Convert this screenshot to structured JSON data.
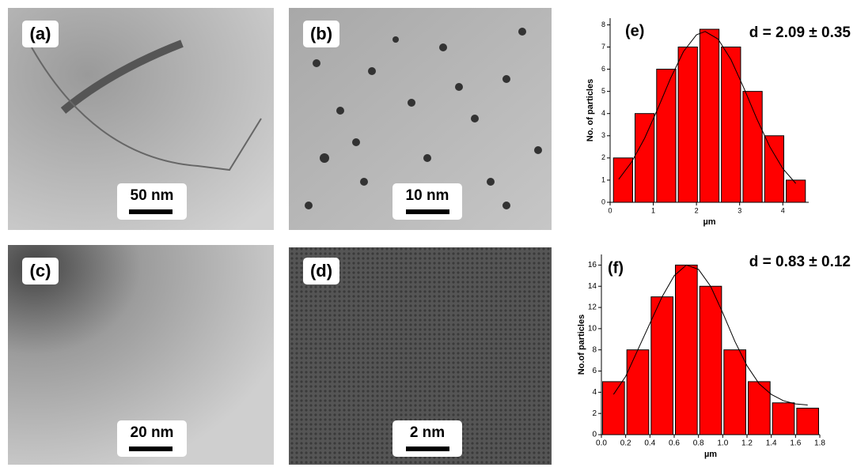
{
  "panels": [
    {
      "label": "(a)",
      "scale": "50 nm"
    },
    {
      "label": "(b)",
      "scale": "10 nm"
    },
    {
      "label": "(c)",
      "scale": "20 nm"
    },
    {
      "label": "(d)",
      "scale": "2 nm"
    }
  ],
  "chart_data": [
    {
      "type": "histogram",
      "panel_label": "(e)",
      "annotation": "d = 2.09 ± 0.35",
      "x_label": "µm",
      "y_label": "No. of particles",
      "bins": [
        0.05,
        0.55,
        1.05,
        1.55,
        2.05,
        2.55,
        3.05,
        3.55,
        4.05,
        4.55
      ],
      "values": [
        2,
        4,
        6,
        7,
        7.8,
        7,
        5,
        3,
        1
      ],
      "color": "#ff0000",
      "fit": {
        "x": [
          0.2,
          0.5,
          0.8,
          1.1,
          1.4,
          1.7,
          2.0,
          2.2,
          2.5,
          2.8,
          3.1,
          3.4,
          3.7,
          4.0,
          4.3
        ],
        "y": [
          1.04,
          1.82,
          2.89,
          4.2,
          5.59,
          6.8,
          7.55,
          7.7,
          7.36,
          6.43,
          5.14,
          3.75,
          2.5,
          1.52,
          0.85
        ]
      },
      "xlim": [
        0,
        4.6
      ],
      "xticks": [
        0,
        1,
        2,
        3,
        4
      ],
      "ylim": [
        0,
        8.3
      ],
      "yticks": [
        0,
        1,
        2,
        3,
        4,
        5,
        6,
        7,
        8
      ]
    },
    {
      "type": "histogram",
      "panel_label": "(f)",
      "annotation": "d = 0.83 ± 0.12",
      "x_label": "µm",
      "y_label": "No.of particles",
      "bins": [
        0,
        0.2,
        0.4,
        0.6,
        0.8,
        1.0,
        1.2,
        1.4,
        1.6,
        1.8
      ],
      "values": [
        5,
        8,
        13,
        16,
        14,
        8,
        5,
        3,
        2.5
      ],
      "color": "#ff0000",
      "fit": {
        "x": [
          0.1,
          0.2,
          0.3,
          0.4,
          0.5,
          0.6,
          0.7,
          0.8,
          0.9,
          1.0,
          1.1,
          1.2,
          1.3,
          1.4,
          1.5,
          1.6,
          1.7
        ],
        "y": [
          3.8,
          5.5,
          8,
          10.5,
          13,
          15,
          16,
          15.6,
          14,
          11.5,
          8.8,
          6.5,
          4.8,
          3.8,
          3.2,
          2.9,
          2.8
        ]
      },
      "xlim": [
        0,
        1.8
      ],
      "xticks": [
        {
          "value": 0,
          "label": "0.0"
        },
        0.2,
        0.4,
        0.6,
        0.8,
        {
          "value": 1,
          "label": "1.0"
        },
        1.2,
        1.4,
        1.6,
        1.8
      ],
      "ylim": [
        0,
        17
      ],
      "yticks": [
        0,
        2,
        4,
        6,
        8,
        10,
        12,
        14,
        16
      ]
    }
  ]
}
